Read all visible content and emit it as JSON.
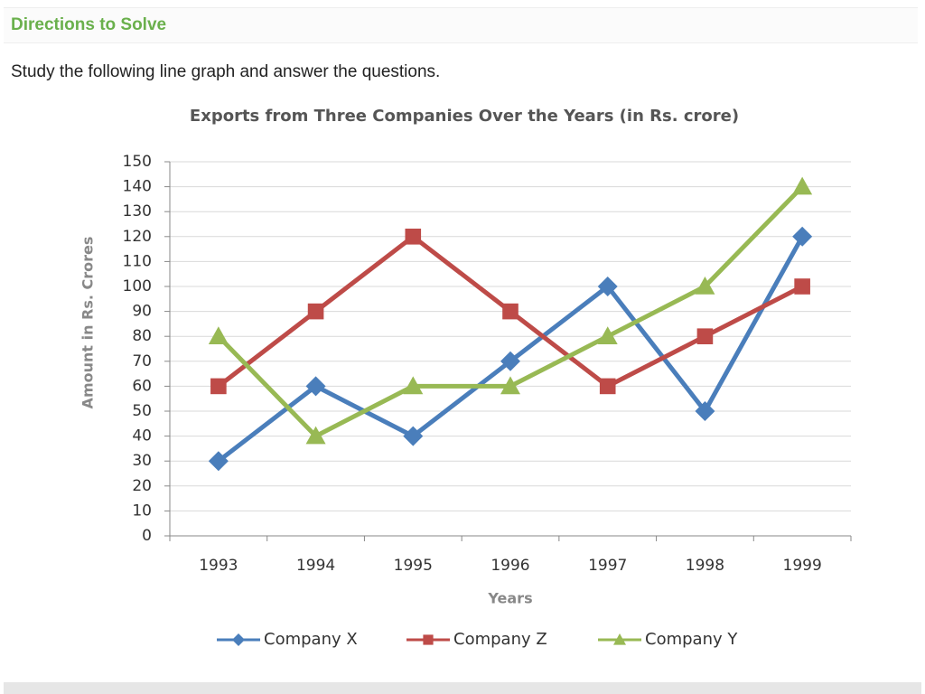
{
  "header": {
    "title": "Directions to Solve"
  },
  "instruction": "Study the following line graph and answer the questions.",
  "chart_data": {
    "type": "line",
    "title": "Exports from Three Companies Over the Years (in Rs. crore)",
    "x_label": "Years",
    "y_label": "Amount in Rs. Crores",
    "categories": [
      "1993",
      "1994",
      "1995",
      "1996",
      "1997",
      "1998",
      "1999"
    ],
    "series": [
      {
        "name": "Company X",
        "color": "#4a7ebb",
        "marker": "diamond",
        "values": [
          30,
          60,
          40,
          70,
          100,
          50,
          120
        ]
      },
      {
        "name": "Company Z",
        "color": "#be4b48",
        "marker": "square",
        "values": [
          60,
          90,
          120,
          90,
          60,
          80,
          100
        ]
      },
      {
        "name": "Company Y",
        "color": "#98b954",
        "marker": "triangle",
        "values": [
          80,
          40,
          60,
          60,
          80,
          100,
          140
        ]
      }
    ],
    "ylim": [
      0,
      150
    ],
    "yticks": [
      0,
      10,
      20,
      30,
      40,
      50,
      60,
      70,
      80,
      90,
      100,
      110,
      120,
      130,
      140,
      150
    ],
    "grid": true,
    "legend": "bottom"
  }
}
